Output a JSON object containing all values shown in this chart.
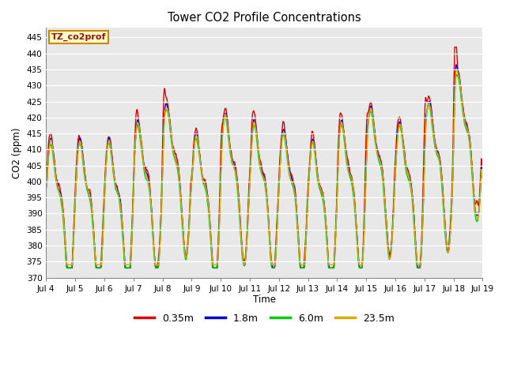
{
  "title": "Tower CO2 Profile Concentrations",
  "xlabel": "Time",
  "ylabel": "CO2 (ppm)",
  "ylim": [
    370,
    448
  ],
  "yticks": [
    370,
    375,
    380,
    385,
    390,
    395,
    400,
    405,
    410,
    415,
    420,
    425,
    430,
    435,
    440,
    445
  ],
  "colors": {
    "0.35m": "#dd0000",
    "1.8m": "#0000cc",
    "6.0m": "#00cc00",
    "23.5m": "#ddaa00"
  },
  "legend_label": "TZ_co2prof",
  "legend_bg": "#ffffcc",
  "legend_border": "#cc8800",
  "plot_bg": "#e8e8e8",
  "fig_bg": "#ffffff",
  "xticklabels": [
    "Jul 4",
    "Jul 5",
    "Jul 6",
    "Jul 7",
    "Jul 8",
    "Jul 9",
    "Jul 10",
    "Jul 11",
    "Jul 12",
    "Jul 13",
    "Jul 14",
    "Jul 15",
    "Jul 16",
    "Jul 17",
    "Jul 18",
    "Jul 19"
  ],
  "series_labels": [
    "0.35m",
    "1.8m",
    "6.0m",
    "23.5m"
  ],
  "line_width": 1.0,
  "n_points": 720
}
